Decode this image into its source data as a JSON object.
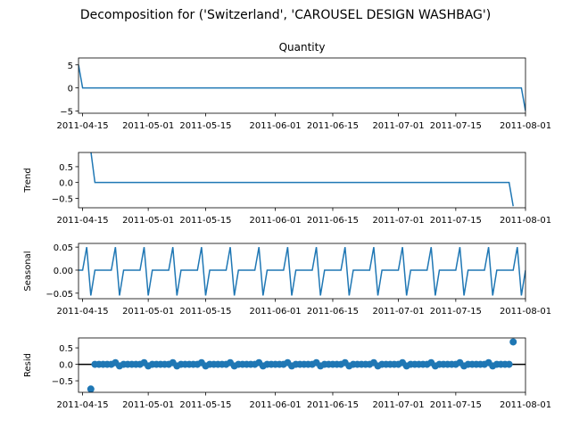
{
  "figure": {
    "suptitle": "Decomposition for ('Switzerland', 'CAROUSEL DESIGN WASHBAG')"
  },
  "chart_data": {
    "type": "line",
    "x_ticks": [
      "2011-04-15",
      "2011-05-01",
      "2011-05-15",
      "2011-06-01",
      "2011-06-15",
      "2011-07-01",
      "2011-07-15",
      "2011-08-01"
    ],
    "x_range": [
      "2011-04-14",
      "2011-08-01"
    ],
    "line_color": "#1f77b4",
    "panels": [
      {
        "key": "observed",
        "title": "Quantity",
        "ylabel": "",
        "type": "line",
        "ylim": [
          -5.5,
          6.5
        ],
        "yticks": [
          "5",
          "0",
          "−5"
        ],
        "ytick_values": [
          5,
          0,
          -5
        ],
        "series": [
          {
            "x": "2011-04-14",
            "y": 5
          },
          {
            "x": "2011-04-15",
            "y": 0
          },
          {
            "x": "2011-07-31",
            "y": 0
          },
          {
            "x": "2011-08-01",
            "y": -5
          }
        ]
      },
      {
        "key": "trend",
        "title": "",
        "ylabel": "Trend",
        "type": "line",
        "ylim": [
          -0.8,
          0.95
        ],
        "yticks": [
          "0.5",
          "0.0",
          "−0.5"
        ],
        "ytick_values": [
          0.5,
          0,
          -0.5
        ],
        "series": [
          {
            "x": "2011-04-17",
            "y": 1.0
          },
          {
            "x": "2011-04-18",
            "y": 0
          },
          {
            "x": "2011-07-28",
            "y": 0
          },
          {
            "x": "2011-07-29",
            "y": -0.75
          }
        ]
      },
      {
        "key": "seasonal",
        "title": "",
        "ylabel": "Seasonal",
        "type": "line",
        "period_days": 7,
        "pattern": [
          0,
          0,
          0.05,
          -0.055,
          0,
          0,
          0
        ],
        "ylim": [
          -0.062,
          0.058
        ],
        "yticks": [
          "0.05",
          "0.00",
          "−0.05"
        ],
        "ytick_values": [
          0.05,
          0,
          -0.05
        ],
        "series": []
      },
      {
        "key": "resid",
        "title": "",
        "ylabel": "Resid",
        "type": "scatter",
        "ylim": [
          -0.85,
          0.8
        ],
        "yticks": [
          "0.5",
          "0.0",
          "−0.5"
        ],
        "ytick_values": [
          0.5,
          0,
          -0.5
        ],
        "baseline": 0,
        "range_start": "2011-04-17",
        "range_end": "2011-07-29",
        "small_offsets": {
          "pos": 0.05,
          "neg": -0.05
        },
        "outliers": [
          {
            "x": "2011-04-17",
            "y": -0.75
          },
          {
            "x": "2011-07-29",
            "y": 0.68
          }
        ]
      }
    ]
  }
}
